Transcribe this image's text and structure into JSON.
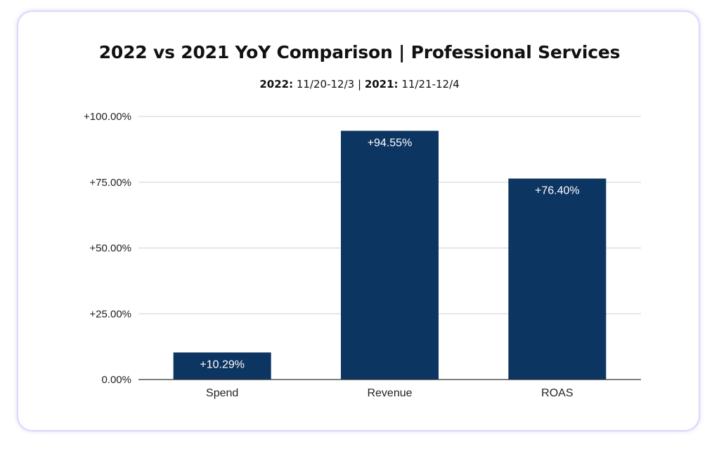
{
  "chart_data": {
    "type": "bar",
    "title": "2022 vs 2021 YoY Comparison | Professional Services",
    "subtitle": {
      "label_2022": "2022:",
      "range_2022": "11/20-12/3",
      "separator": "|",
      "label_2021": "2021:",
      "range_2021": "11/21-12/4"
    },
    "categories": [
      "Spend",
      "Revenue",
      "ROAS"
    ],
    "values": [
      10.29,
      94.55,
      76.4
    ],
    "data_labels": [
      "+10.29%",
      "+94.55%",
      "+76.40%"
    ],
    "y_ticks": [
      {
        "value": 0,
        "label": "0.00%"
      },
      {
        "value": 25,
        "label": "+25.00%"
      },
      {
        "value": 50,
        "label": "+50.00%"
      },
      {
        "value": 75,
        "label": "+75.00%"
      },
      {
        "value": 100,
        "label": "+100.00%"
      }
    ],
    "ylim": [
      0,
      100
    ],
    "grid": true,
    "xlabel": "",
    "ylabel": "",
    "colors": {
      "bar": "#0d3562",
      "grid": "#d0d0d0",
      "axis": "#333333",
      "card_border": "#ddd7fb"
    }
  }
}
